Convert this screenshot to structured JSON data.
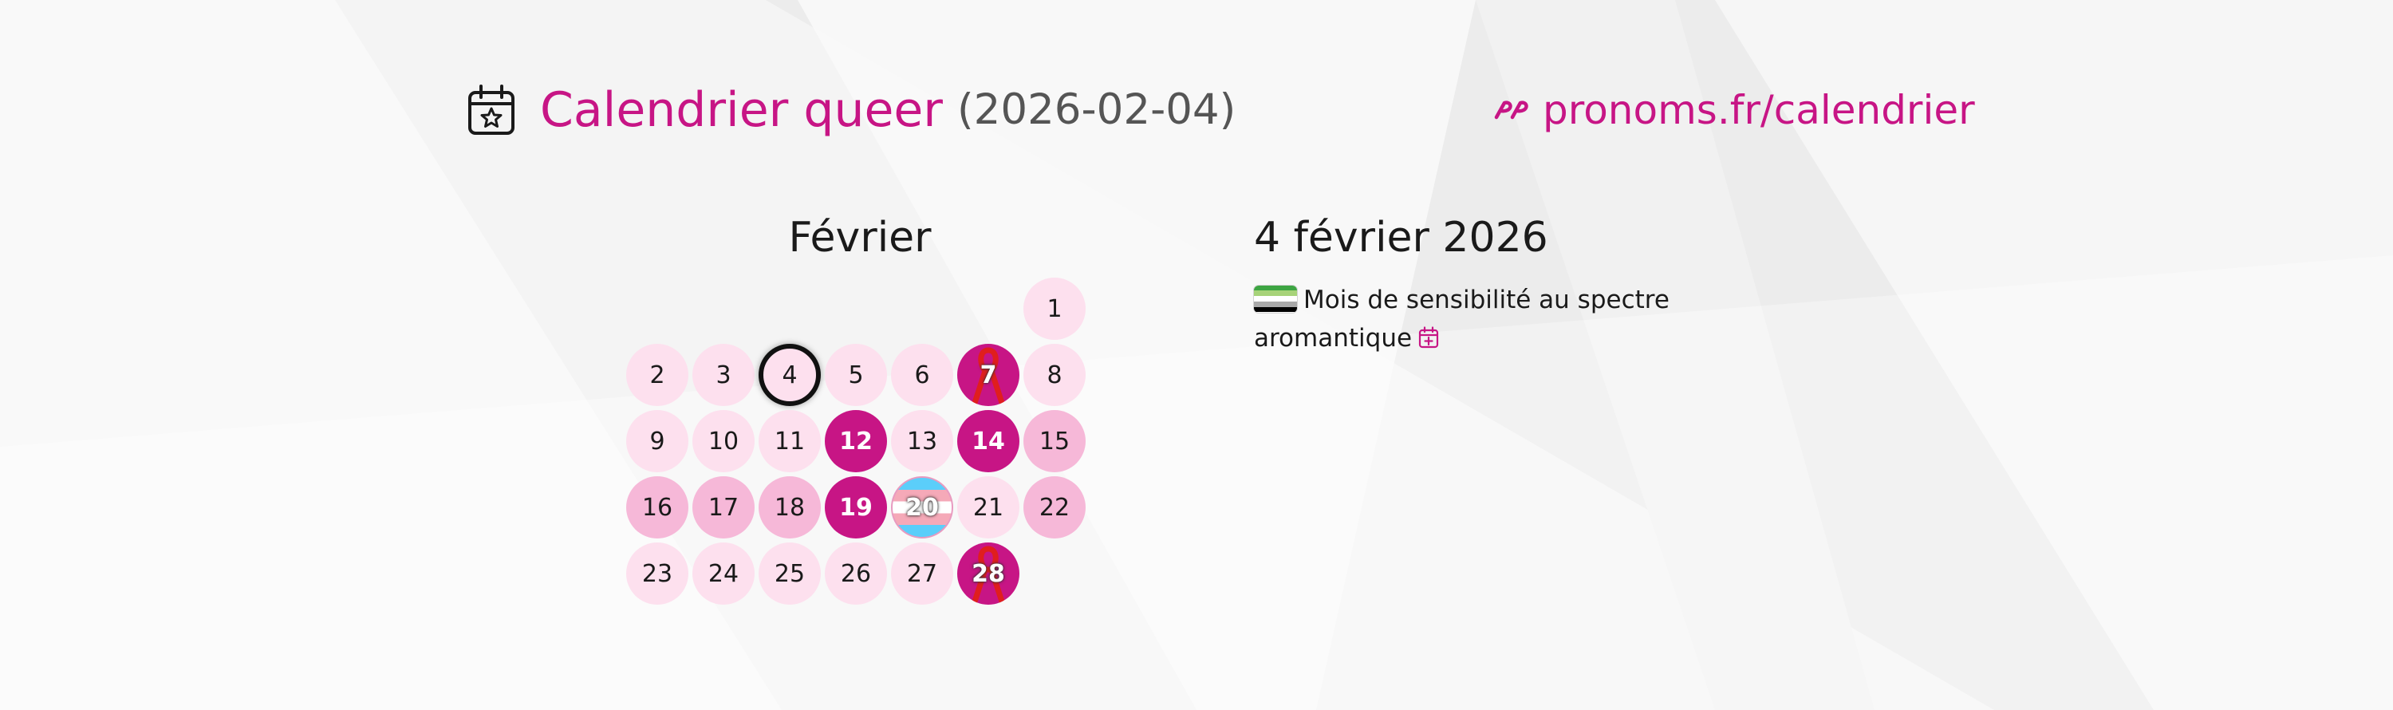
{
  "header": {
    "title": "Calendrier queer",
    "date": "(2026-02-04)",
    "link_text": "pronoms.fr/calendrier",
    "icon": "calendar-star-icon",
    "link_icon": "pronoms-logo-icon"
  },
  "calendar": {
    "month": "Février",
    "days": [
      {
        "n": "1",
        "level": 0
      },
      {
        "n": "2",
        "level": 0
      },
      {
        "n": "3",
        "level": 0
      },
      {
        "n": "4",
        "level": 0,
        "selected": true
      },
      {
        "n": "5",
        "level": 0
      },
      {
        "n": "6",
        "level": 0
      },
      {
        "n": "7",
        "level": 2,
        "ribbon": true
      },
      {
        "n": "8",
        "level": 0
      },
      {
        "n": "9",
        "level": 0
      },
      {
        "n": "10",
        "level": 0
      },
      {
        "n": "11",
        "level": 0
      },
      {
        "n": "12",
        "level": 2
      },
      {
        "n": "13",
        "level": 0
      },
      {
        "n": "14",
        "level": 2
      },
      {
        "n": "15",
        "level": 1
      },
      {
        "n": "16",
        "level": 1
      },
      {
        "n": "17",
        "level": 1
      },
      {
        "n": "18",
        "level": 1
      },
      {
        "n": "19",
        "level": 2
      },
      {
        "n": "20",
        "level": 1,
        "flag": "transgender"
      },
      {
        "n": "21",
        "level": 0
      },
      {
        "n": "22",
        "level": 1
      },
      {
        "n": "23",
        "level": 0
      },
      {
        "n": "24",
        "level": 0
      },
      {
        "n": "25",
        "level": 0
      },
      {
        "n": "26",
        "level": 0
      },
      {
        "n": "27",
        "level": 0
      },
      {
        "n": "28",
        "level": 2,
        "ribbon": true
      }
    ],
    "colors": {
      "accent": "#c71585",
      "light": "#fde0ee",
      "medium": "#f6b8d8"
    }
  },
  "events": {
    "date_title": "4 février 2026",
    "items": [
      {
        "text": "Mois de sensibilité au spectre aromantique",
        "flag": "aromantic",
        "flag_colors": [
          "#3da542",
          "#a7d379",
          "#ffffff",
          "#a9a9a9",
          "#000000"
        ],
        "action_icon": "calendar-plus-icon"
      }
    ]
  }
}
